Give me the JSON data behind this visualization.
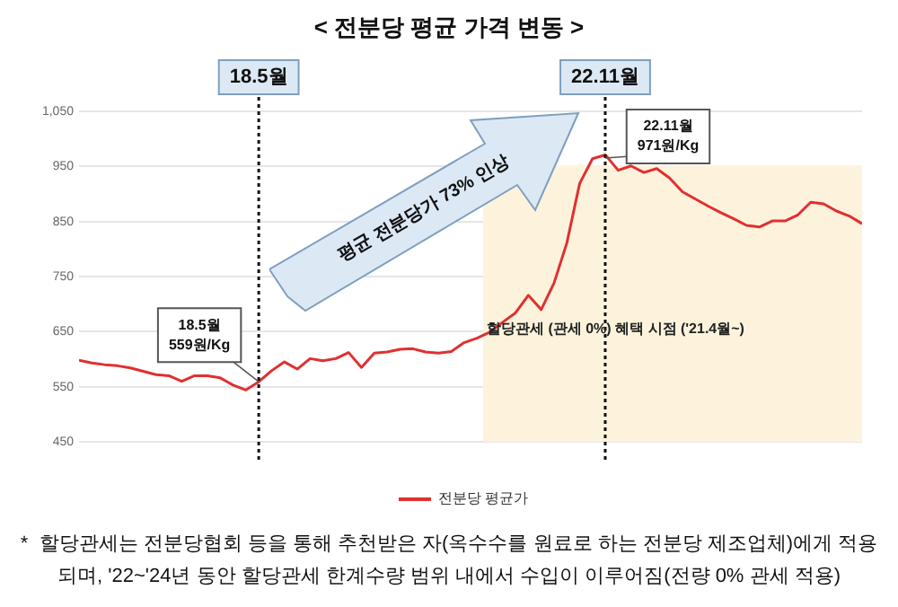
{
  "chart_data": {
    "type": "line",
    "title": "< 전분당 평균 가격 변동 >",
    "categories": [
      null,
      null,
      null,
      null,
      null,
      null,
      null,
      null,
      null,
      null,
      null,
      null,
      null,
      null,
      null,
      null,
      null,
      null,
      null,
      null,
      null,
      null,
      null,
      null,
      null,
      null,
      null,
      null,
      null,
      null,
      null,
      null,
      null,
      null,
      null,
      null,
      null,
      null,
      null,
      null,
      null,
      null,
      null,
      null,
      null,
      null,
      null,
      null,
      null,
      null,
      null,
      null,
      null,
      null,
      null,
      null,
      null,
      null,
      null,
      null,
      null,
      null
    ],
    "series": [
      {
        "name": "전분당 평균가",
        "color": "#e03030",
        "values": [
          598,
          593,
          590,
          588,
          584,
          578,
          572,
          570,
          560,
          570,
          570,
          566,
          553,
          544,
          559,
          579,
          595,
          582,
          601,
          597,
          601,
          612,
          585,
          611,
          613,
          618,
          619,
          613,
          611,
          614,
          630,
          638,
          649,
          667,
          684,
          716,
          690,
          738,
          811,
          919,
          964,
          971,
          943,
          951,
          939,
          946,
          929,
          904,
          891,
          878,
          866,
          855,
          843,
          840,
          851,
          851,
          862,
          885,
          882,
          869,
          860,
          846
        ]
      }
    ],
    "ylim": [
      450,
      1050
    ],
    "yticks": [
      450,
      550,
      650,
      750,
      850,
      950,
      {
        "value": 1050,
        "label": "1,050"
      }
    ],
    "tick_labels": "y",
    "grid": "y",
    "legend": "bottom",
    "marker": "none",
    "line_style": "solid",
    "annotations": [
      {
        "text": "18.5월\n559원/Kg",
        "y": 559
      },
      "18.5월",
      "22.11월",
      "22.11월\n971원/Kg",
      "평균 전분당가 73% 인상",
      "할당관세 (관세 0%) 혜택 시점 ('21.4월~)",
      "*  할당관세는 전분당협회 등을 통해 추천받은 자(옥수수를 원료로 하는 전분당 제조업체)에게 적용\n되며, '22~'24년 동안 할당관세 한계수량 범위 내에서 수입이 이루어짐(전량 0% 관세 적용)"
    ]
  }
}
